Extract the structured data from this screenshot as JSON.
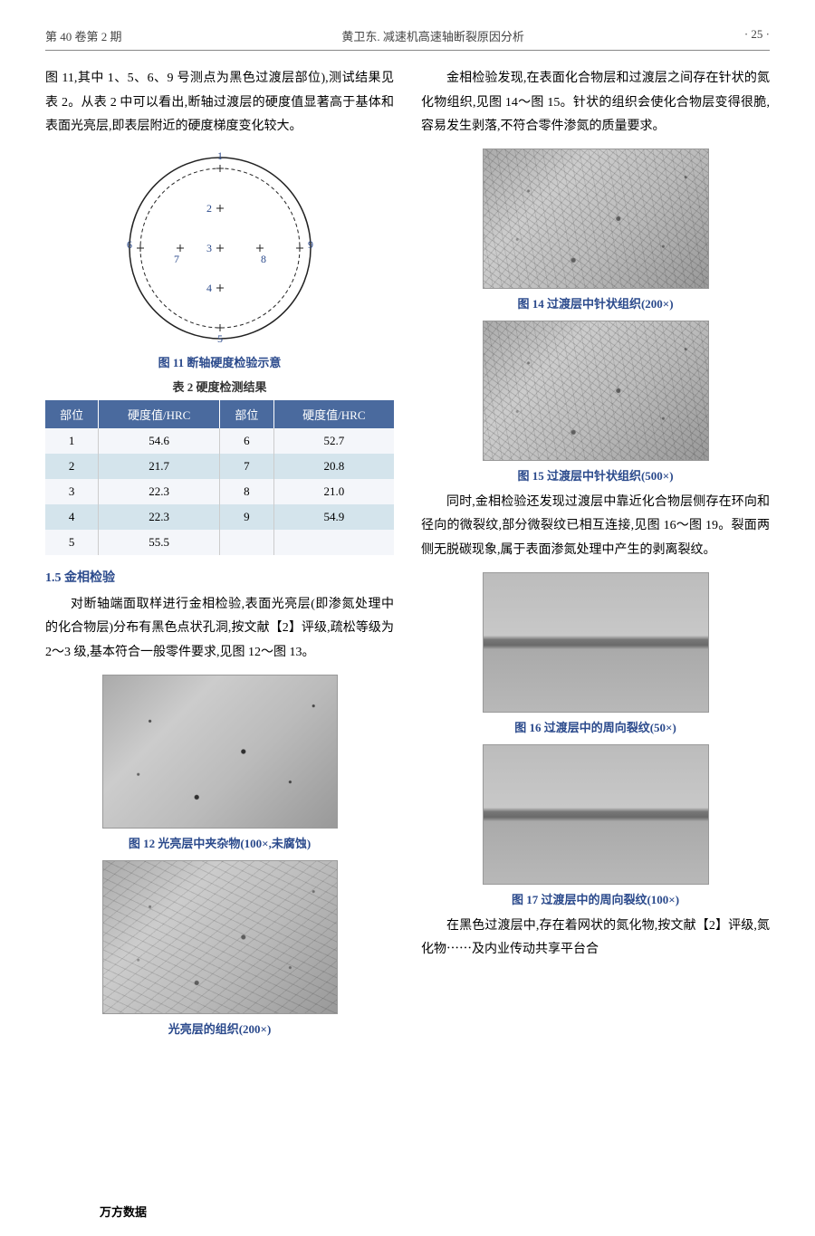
{
  "header": {
    "left": "第 40 卷第 2 期",
    "center": "黄卫东. 减速机高速轴断裂原因分析",
    "right": "· 25 ·"
  },
  "left_col": {
    "p1": "图 11,其中 1、5、6、9 号测点为黑色过渡层部位),测试结果见表 2。从表 2 中可以看出,断轴过渡层的硬度值显著高于基体和表面光亮层,即表层附近的硬度梯度变化较大。",
    "fig11_caption": "图 11  断轴硬度检验示意",
    "table2_title": "表 2  硬度检测结果",
    "table2": {
      "headers": [
        "部位",
        "硬度值/HRC",
        "部位",
        "硬度值/HRC"
      ],
      "rows": [
        [
          "1",
          "54.6",
          "6",
          "52.7"
        ],
        [
          "2",
          "21.7",
          "7",
          "20.8"
        ],
        [
          "3",
          "22.3",
          "8",
          "21.0"
        ],
        [
          "4",
          "22.3",
          "9",
          "54.9"
        ],
        [
          "5",
          "55.5",
          "",
          ""
        ]
      ],
      "header_bg": "#4a6a9e",
      "odd_bg": "#f4f6fa",
      "even_bg": "#d4e4ec"
    },
    "section_1_5": "1.5  金相检验",
    "p2": "对断轴端面取样进行金相检验,表面光亮层(即渗氮处理中的化合物层)分布有黑色点状孔洞,按文献【2】评级,疏松等级为 2～3 级,基本符合一般零件要求,见图 12～图 13。",
    "fig12_caption": "图 12  光亮层中夹杂物(100×,未腐蚀)",
    "fig13_caption": "光亮层的组织(200×)",
    "footer_left": "万方数据"
  },
  "right_col": {
    "p1": "金相检验发现,在表面化合物层和过渡层之间存在针状的氮化物组织,见图 14～图 15。针状的组织会使化合物层变得很脆,容易发生剥落,不符合零件渗氮的质量要求。",
    "fig14_caption": "图 14  过渡层中针状组织(200×)",
    "fig15_caption": "图 15  过渡层中针状组织(500×)",
    "p2": "同时,金相检验还发现过渡层中靠近化合物层侧存在环向和径向的微裂纹,部分微裂纹已相互连接,见图 16～图 19。裂面两侧无脱碳现象,属于表面渗氮处理中产生的剥离裂纹。",
    "fig16_caption": "图 16  过渡层中的周向裂纹(50×)",
    "fig17_caption": "图 17  过渡层中的周向裂纹(100×)",
    "p3": "在黑色过渡层中,存在着网状的氮化物,按文献【2】评级,氮化物⋯⋯及内业传动共享平台合"
  },
  "fig11": {
    "type": "schematic-circle",
    "outer_radius": 100,
    "inner_radius": 88,
    "points": [
      {
        "id": "1",
        "x": 0,
        "y": -88
      },
      {
        "id": "2",
        "x": 0,
        "y": -44
      },
      {
        "id": "3",
        "x": 0,
        "y": 0
      },
      {
        "id": "4",
        "x": 0,
        "y": 44
      },
      {
        "id": "5",
        "x": 0,
        "y": 88
      },
      {
        "id": "6",
        "x": -88,
        "y": 0
      },
      {
        "id": "7",
        "x": -44,
        "y": 0
      },
      {
        "id": "8",
        "x": 44,
        "y": 0
      },
      {
        "id": "9",
        "x": 88,
        "y": 0
      }
    ],
    "stroke": "#222222",
    "label_color": "#2b4a8c",
    "label_fontsize": 12
  }
}
